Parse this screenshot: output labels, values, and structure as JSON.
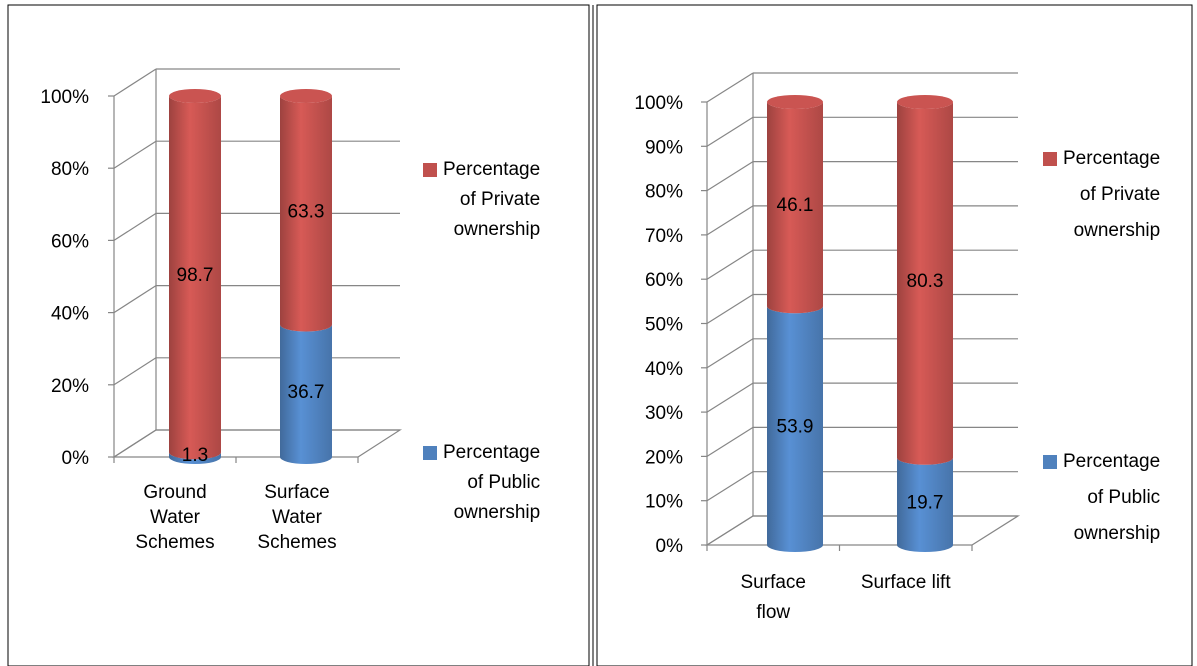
{
  "chart_data": [
    {
      "type": "bar",
      "stacked": true,
      "three_d": true,
      "percent_axis": true,
      "categories": [
        "Ground Water Schemes",
        "Surface Water Schemes"
      ],
      "category_lines": [
        [
          "Ground",
          "Water",
          "Schemes"
        ],
        [
          "Surface",
          "Water",
          "Schemes"
        ]
      ],
      "series": [
        {
          "name": "Percentage of Public ownership",
          "values": [
            1.3,
            36.7
          ],
          "labels": [
            "1.3",
            "36.7"
          ],
          "color": "#4f81bd"
        },
        {
          "name": "Percentage of Private ownership",
          "values": [
            98.7,
            63.3
          ],
          "labels": [
            "98.7",
            "63.3"
          ],
          "color": "#c0504d"
        }
      ],
      "yticks": [
        "0%",
        "20%",
        "40%",
        "60%",
        "80%",
        "100%"
      ],
      "ylim": [
        0,
        100
      ],
      "grid": true,
      "legend": {
        "placement": "right",
        "order": [
          1,
          0
        ],
        "entries": [
          {
            "lines": [
              "Percentage",
              "of  Private",
              "ownership"
            ]
          },
          {
            "lines": [
              "Percentage",
              "of  Public",
              "ownership"
            ]
          }
        ]
      }
    },
    {
      "type": "bar",
      "stacked": true,
      "three_d": true,
      "percent_axis": true,
      "categories": [
        "Surface flow",
        "Surface lift"
      ],
      "category_lines": [
        [
          "Surface",
          "flow"
        ],
        [
          "Surface lift"
        ]
      ],
      "series": [
        {
          "name": "Percentage of Public ownership",
          "values": [
            53.9,
            19.7
          ],
          "labels": [
            "53.9",
            "19.7"
          ],
          "color": "#4f81bd"
        },
        {
          "name": "Percentage of Private ownership",
          "values": [
            46.1,
            80.3
          ],
          "labels": [
            "46.1",
            "80.3"
          ],
          "color": "#c0504d"
        }
      ],
      "yticks": [
        "0%",
        "10%",
        "20%",
        "30%",
        "40%",
        "50%",
        "60%",
        "70%",
        "80%",
        "90%",
        "100%"
      ],
      "ylim": [
        0,
        100
      ],
      "grid": true,
      "legend": {
        "placement": "right",
        "order": [
          1,
          0
        ],
        "entries": [
          {
            "lines": [
              "Percentage",
              "of  Private",
              "ownership"
            ]
          },
          {
            "lines": [
              "Percentage",
              "of  Public",
              "ownership"
            ]
          }
        ]
      }
    }
  ]
}
